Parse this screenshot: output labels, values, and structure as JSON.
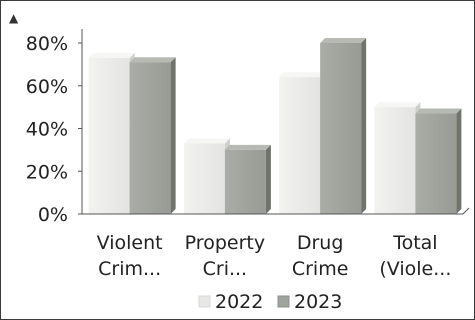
{
  "chart_data": {
    "type": "bar",
    "categories": [
      [
        "Violent",
        "Crim..."
      ],
      [
        "Property",
        "Cri..."
      ],
      [
        "Drug",
        "Crime"
      ],
      [
        "Total",
        "(Viole..."
      ]
    ],
    "series": [
      {
        "name": "2022",
        "values": [
          73,
          33,
          64,
          50
        ],
        "color": "#e8e9e6"
      },
      {
        "name": "2023",
        "values": [
          71,
          30,
          80,
          47
        ],
        "color": "#9ea39c"
      }
    ],
    "ylim": [
      0,
      80
    ],
    "yticks": [
      "0%",
      "20%",
      "40%",
      "60%",
      "80%"
    ],
    "ytick_values": [
      0,
      20,
      40,
      60,
      80
    ],
    "grid": false,
    "legend_position": "bottom",
    "axis_arrow": "▲"
  }
}
